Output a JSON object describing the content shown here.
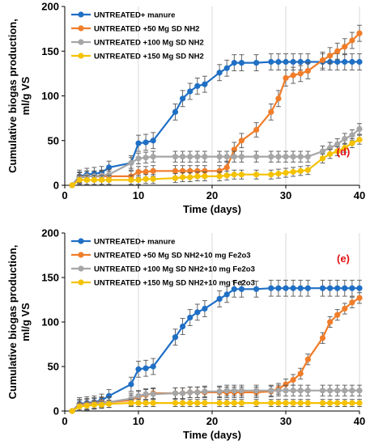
{
  "chart_data": [
    {
      "type": "line",
      "panel_label": "(d)",
      "panel_label_color": "#e01010",
      "xlabel": "Time (days)",
      "ylabel_line1": "Cumulative biogas production,",
      "ylabel_line2": "ml/g VS",
      "xlim": [
        0,
        40
      ],
      "ylim": [
        0,
        200
      ],
      "xticks": [
        "0",
        "10",
        "20",
        "30",
        "40"
      ],
      "yticks": [
        "0",
        "50",
        "100",
        "150",
        "200"
      ],
      "grid": "vertical",
      "legend_position": "top-left",
      "x": [
        1,
        2,
        3,
        4,
        5,
        6,
        9,
        10,
        11,
        12,
        15,
        16,
        17,
        18,
        19,
        21,
        22,
        23,
        24,
        26,
        28,
        29,
        30,
        31,
        32,
        33,
        35,
        36,
        37,
        38,
        39,
        40
      ],
      "series": [
        {
          "name": "UNTREATED+ manure",
          "color": "#1f6fc5",
          "values": [
            0,
            10,
            12,
            13,
            14,
            20,
            25,
            47,
            48,
            50,
            82,
            97,
            105,
            111,
            113,
            126,
            131,
            137,
            137,
            137,
            138,
            138,
            138,
            138,
            138,
            138,
            138,
            138,
            138,
            138,
            138,
            138
          ],
          "errors": [
            0,
            7,
            7,
            7,
            7,
            7,
            8,
            9,
            9,
            9,
            9,
            9,
            9,
            9,
            9,
            9,
            9,
            9,
            9,
            9,
            9,
            9,
            9,
            9,
            9,
            9,
            9,
            9,
            9,
            9,
            9,
            9
          ]
        },
        {
          "name": "UNTREATED +50 Mg SD NH2",
          "color": "#f07d2a",
          "values": [
            0,
            9,
            10,
            10,
            10,
            10,
            10,
            15,
            15,
            16,
            16,
            16,
            16,
            16,
            16,
            16,
            20,
            40,
            50,
            62,
            82,
            97,
            120,
            123,
            125,
            128,
            140,
            145,
            150,
            155,
            162,
            170
          ],
          "errors": [
            0,
            6,
            6,
            6,
            6,
            6,
            6,
            6,
            6,
            6,
            6,
            6,
            6,
            6,
            6,
            6,
            7,
            8,
            8,
            8,
            9,
            9,
            9,
            9,
            9,
            9,
            9,
            9,
            9,
            9,
            9,
            9
          ]
        },
        {
          "name": "UNTREATED +100 Mg SD  NH2",
          "color": "#a6a6a6",
          "values": [
            0,
            8,
            10,
            10,
            11,
            12,
            25,
            30,
            31,
            32,
            32,
            32,
            32,
            32,
            32,
            32,
            32,
            32,
            32,
            32,
            32,
            32,
            32,
            32,
            32,
            32,
            38,
            42,
            46,
            52,
            56,
            63
          ],
          "errors": [
            0,
            6,
            6,
            6,
            6,
            6,
            6,
            6,
            6,
            6,
            6,
            6,
            6,
            6,
            6,
            6,
            6,
            6,
            6,
            6,
            6,
            6,
            6,
            6,
            6,
            6,
            6,
            6,
            6,
            6,
            6,
            6
          ]
        },
        {
          "name": "UNTREATED +150 Mg SD  NH2",
          "color": "#f5c200",
          "values": [
            0,
            6,
            6,
            6,
            6,
            6,
            6,
            6,
            7,
            7,
            8,
            9,
            9,
            10,
            10,
            10,
            11,
            12,
            12,
            12,
            12,
            13,
            14,
            15,
            16,
            17,
            30,
            35,
            38,
            42,
            47,
            51
          ],
          "errors": [
            0,
            5,
            5,
            5,
            5,
            5,
            5,
            5,
            5,
            5,
            5,
            5,
            5,
            5,
            5,
            5,
            5,
            5,
            5,
            5,
            5,
            5,
            5,
            5,
            5,
            5,
            5,
            5,
            5,
            5,
            5,
            5
          ]
        }
      ]
    },
    {
      "type": "line",
      "panel_label": "(e)",
      "panel_label_color": "#e01010",
      "xlabel": "Time (days)",
      "ylabel_line1": "Cumulative biogas production,",
      "ylabel_line2": "ml/g VS",
      "xlim": [
        0,
        40
      ],
      "ylim": [
        0,
        200
      ],
      "xticks": [
        "0",
        "10",
        "20",
        "30",
        "40"
      ],
      "yticks": [
        "0",
        "50",
        "100",
        "150",
        "200"
      ],
      "grid": "vertical",
      "legend_position": "top-left",
      "x": [
        1,
        2,
        3,
        4,
        5,
        6,
        9,
        10,
        11,
        12,
        15,
        16,
        17,
        18,
        19,
        21,
        22,
        23,
        24,
        26,
        28,
        29,
        30,
        31,
        32,
        33,
        35,
        36,
        37,
        38,
        39,
        40
      ],
      "series": [
        {
          "name": "UNTREATED+ manure",
          "color": "#1f6fc5",
          "values": [
            0,
            8,
            9,
            10,
            12,
            17,
            30,
            47,
            48,
            50,
            83,
            95,
            105,
            111,
            115,
            126,
            131,
            137,
            137,
            137,
            138,
            138,
            138,
            138,
            138,
            138,
            138,
            138,
            138,
            138,
            138,
            138
          ],
          "errors": [
            0,
            7,
            7,
            7,
            7,
            7,
            8,
            9,
            9,
            9,
            9,
            9,
            9,
            9,
            9,
            9,
            9,
            9,
            9,
            9,
            9,
            9,
            9,
            9,
            9,
            9,
            9,
            9,
            9,
            9,
            9,
            9
          ]
        },
        {
          "name": "UNTREATED +50 Mg SD NH2+10 mg  Fe2o3",
          "color": "#f07d2a",
          "values": [
            0,
            7,
            8,
            9,
            10,
            10,
            12,
            16,
            18,
            20,
            20,
            20,
            21,
            21,
            21,
            21,
            21,
            21,
            21,
            21,
            22,
            25,
            30,
            35,
            42,
            58,
            82,
            100,
            108,
            115,
            122,
            127
          ],
          "errors": [
            0,
            6,
            6,
            6,
            6,
            6,
            6,
            6,
            6,
            6,
            6,
            6,
            6,
            6,
            6,
            6,
            6,
            6,
            6,
            6,
            6,
            6,
            6,
            6,
            6,
            6,
            6,
            6,
            6,
            6,
            6,
            6
          ]
        },
        {
          "name": "UNTREATED +100 Mg SD  NH2+10 mg  Fe2o3",
          "color": "#a6a6a6",
          "values": [
            0,
            6,
            7,
            8,
            9,
            10,
            14,
            17,
            19,
            19,
            20,
            20,
            21,
            21,
            22,
            22,
            23,
            23,
            23,
            23,
            23,
            23,
            23,
            23,
            23,
            23,
            23,
            23,
            23,
            23,
            23,
            23
          ],
          "errors": [
            0,
            6,
            6,
            6,
            6,
            6,
            6,
            6,
            6,
            6,
            6,
            6,
            6,
            6,
            6,
            6,
            6,
            6,
            6,
            6,
            6,
            6,
            6,
            6,
            6,
            6,
            6,
            6,
            6,
            6,
            6,
            6
          ]
        },
        {
          "name": "UNTREATED +150 Mg SD  NH2+10 mg  Fe2o3",
          "color": "#f5c200",
          "values": [
            0,
            5,
            6,
            7,
            7,
            8,
            9,
            9,
            9,
            9,
            9,
            9,
            9,
            9,
            9,
            9,
            9,
            9,
            9,
            9,
            9,
            9,
            9,
            9,
            9,
            9,
            9,
            9,
            9,
            9,
            9,
            9
          ],
          "errors": [
            0,
            4,
            4,
            4,
            4,
            4,
            4,
            4,
            4,
            4,
            4,
            4,
            4,
            4,
            4,
            4,
            4,
            4,
            4,
            4,
            4,
            4,
            4,
            4,
            4,
            4,
            4,
            4,
            4,
            4,
            4,
            4
          ]
        }
      ]
    }
  ]
}
